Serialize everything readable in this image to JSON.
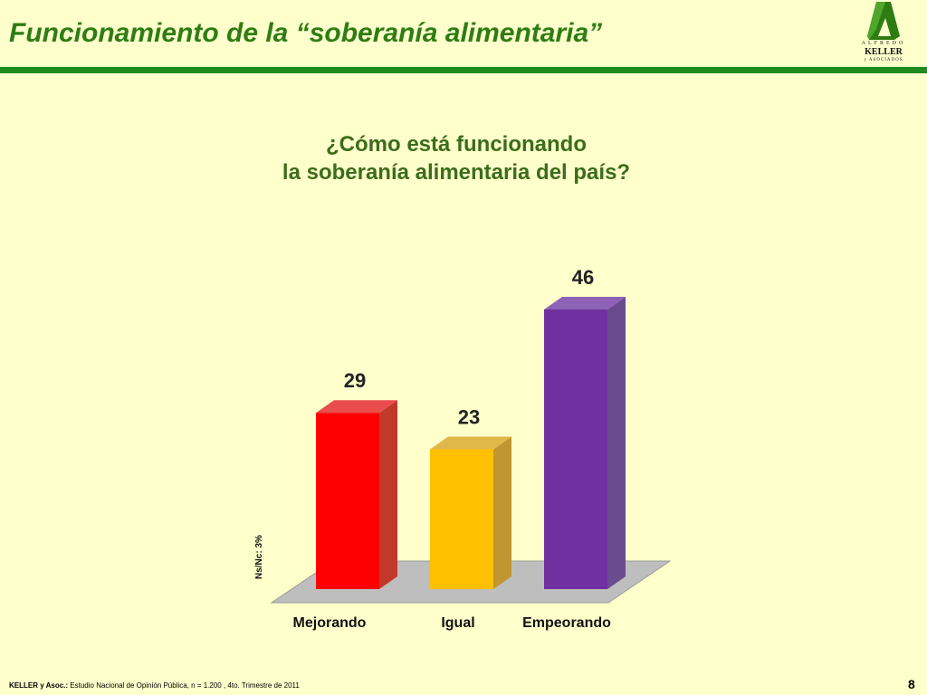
{
  "slide": {
    "title": "Funcionamiento de la “soberanía alimentaria”",
    "page_number": "8"
  },
  "logo": {
    "line1": "ALFREDO",
    "line2": "KELLER",
    "line3": "y ASOCIADOS"
  },
  "footer": {
    "source_label": "KELLER y Asoc.:",
    "source_text": "Estudio Nacional de Opinión Pública, n = 1.200 , 4to. Trimestre de 2011"
  },
  "chart_data": {
    "type": "bar",
    "title_lines": [
      "¿Cómo está funcionando",
      "la soberanía alimentaria del país?"
    ],
    "categories": [
      "Mejorando",
      "Igual",
      "Empeorando"
    ],
    "values": [
      29,
      23,
      46
    ],
    "data_labels": [
      "29",
      "23",
      "46"
    ],
    "colors": [
      "#FF0000",
      "#FFC000",
      "#7030A0"
    ],
    "side_colors": [
      "#C0392B",
      "#BF9630",
      "#6A4B8F"
    ],
    "top_colors": [
      "#E84C4C",
      "#E0B84A",
      "#8E63B5"
    ],
    "annotation": "Ns/Nc: 3%",
    "ylim": [
      0,
      46
    ],
    "grid": false,
    "legend": "none",
    "three_d": true
  }
}
